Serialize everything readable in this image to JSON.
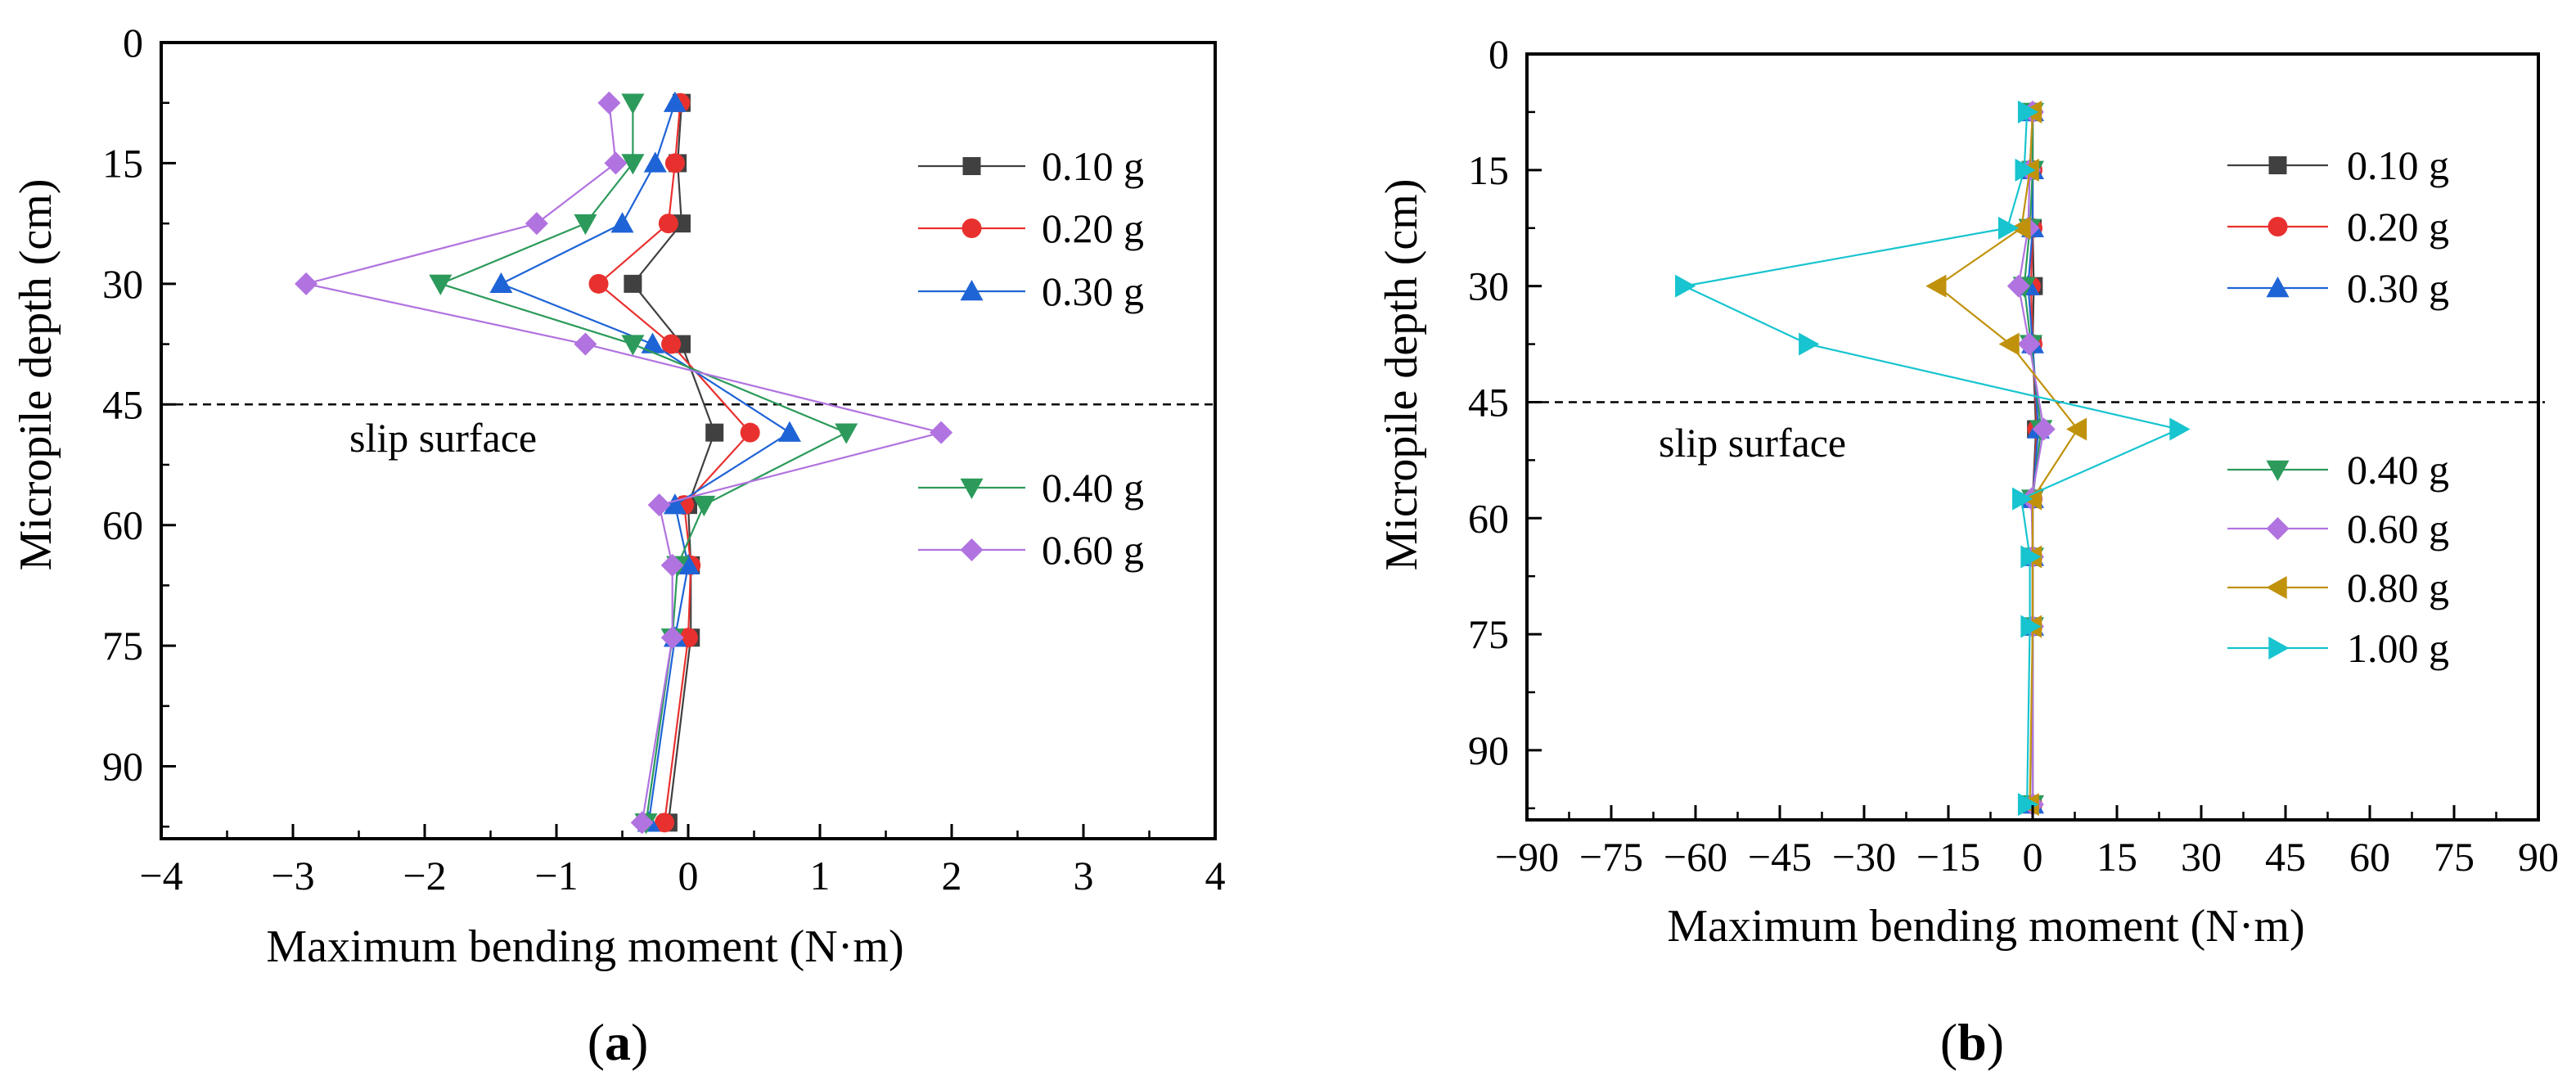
{
  "chart_data": [
    {
      "type": "line",
      "panel": "a",
      "caption_letter": "a",
      "xlabel": "Maximum bending moment (N·m)",
      "ylabel": "Micropile depth (cm)",
      "xlim": [
        -4,
        4
      ],
      "ylim": [
        0,
        99
      ],
      "y_inverted": true,
      "xticks": [
        "−4",
        "−3",
        "−2",
        "−1",
        "0",
        "1",
        "2",
        "3",
        "4"
      ],
      "yticks": [
        "0",
        "15",
        "30",
        "45",
        "60",
        "75",
        "90"
      ],
      "slip_surface_depth": 45,
      "annotation": "slip surface",
      "depths": [
        7.5,
        15,
        22.5,
        30,
        37.5,
        48.5,
        57.5,
        65,
        74,
        97
      ],
      "series": [
        {
          "name": "0.10 g",
          "color": "#404040",
          "marker": "square",
          "x": [
            -0.05,
            -0.08,
            -0.05,
            -0.42,
            -0.05,
            0.2,
            0.0,
            0.02,
            0.02,
            -0.15
          ]
        },
        {
          "name": "0.20 g",
          "color": "#e8312f",
          "marker": "circle",
          "x": [
            -0.06,
            -0.1,
            -0.15,
            -0.68,
            -0.13,
            0.47,
            -0.03,
            0.02,
            0.0,
            -0.18
          ]
        },
        {
          "name": "0.30 g",
          "color": "#1f64d6",
          "marker": "triangle-up",
          "x": [
            -0.1,
            -0.25,
            -0.5,
            -1.42,
            -0.27,
            0.77,
            -0.1,
            0.0,
            -0.1,
            -0.3
          ]
        },
        {
          "name": "0.40 g",
          "color": "#2c9a5a",
          "marker": "triangle-down",
          "x": [
            -0.42,
            -0.42,
            -0.78,
            -1.88,
            -0.42,
            1.2,
            0.12,
            -0.08,
            -0.12,
            -0.32
          ]
        },
        {
          "name": "0.60 g",
          "color": "#b173e0",
          "marker": "diamond",
          "x": [
            -0.6,
            -0.55,
            -1.15,
            -2.9,
            -0.78,
            1.92,
            -0.22,
            -0.12,
            -0.12,
            -0.35
          ]
        }
      ],
      "legend_placement": "right, two groups (upper and lower)"
    },
    {
      "type": "line",
      "panel": "b",
      "caption_letter": "b",
      "xlabel": "Maximum bending moment (N·m)",
      "ylabel": "Micropile depth (cm)",
      "xlim": [
        -90,
        90
      ],
      "ylim": [
        0,
        99
      ],
      "y_inverted": true,
      "xticks": [
        "−90",
        "−75",
        "−60",
        "−45",
        "−30",
        "−15",
        "0",
        "15",
        "30",
        "45",
        "60",
        "75",
        "90"
      ],
      "yticks": [
        "0",
        "15",
        "30",
        "45",
        "60",
        "75",
        "90"
      ],
      "slip_surface_depth": 45,
      "annotation": "slip surface",
      "depths": [
        7.5,
        15,
        22.5,
        30,
        37.5,
        48.5,
        57.5,
        65,
        74,
        97
      ],
      "series": [
        {
          "name": "0.10 g",
          "color": "#404040",
          "marker": "square",
          "x": [
            0,
            0,
            0,
            0.2,
            0,
            0.6,
            0,
            0,
            0,
            0
          ]
        },
        {
          "name": "0.20 g",
          "color": "#e8312f",
          "marker": "circle",
          "x": [
            0,
            0,
            0,
            -0.3,
            0,
            0.8,
            0,
            0,
            0,
            0
          ]
        },
        {
          "name": "0.30 g",
          "color": "#1f64d6",
          "marker": "triangle-up",
          "x": [
            0,
            0,
            0,
            -0.8,
            0,
            1.0,
            0,
            0,
            0,
            0
          ]
        },
        {
          "name": "0.40 g",
          "color": "#2c9a5a",
          "marker": "triangle-down",
          "x": [
            0,
            0,
            -0.5,
            -1.5,
            -0.3,
            1.5,
            0,
            0,
            0,
            0
          ]
        },
        {
          "name": "0.60 g",
          "color": "#b173e0",
          "marker": "diamond",
          "x": [
            0,
            -0.5,
            -0.8,
            -2.5,
            -0.6,
            2.0,
            -0.2,
            0,
            0,
            0
          ]
        },
        {
          "name": "0.80 g",
          "color": "#c0920c",
          "marker": "triangle-left",
          "x": [
            0,
            -0.5,
            -2.0,
            -17.0,
            -4.0,
            8.0,
            0,
            0,
            0,
            -0.5
          ]
        },
        {
          "name": "1.00 g",
          "color": "#17c4cf",
          "marker": "triangle-right",
          "x": [
            -1.0,
            -1.5,
            -4.5,
            -62.0,
            -40.0,
            26.0,
            -2.0,
            -0.5,
            -0.5,
            -1.0
          ]
        }
      ],
      "legend_placement": "right, two groups (upper and lower)"
    }
  ]
}
